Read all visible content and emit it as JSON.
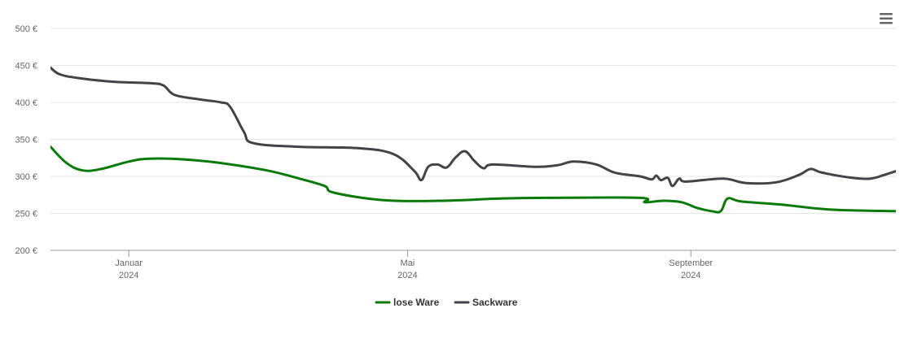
{
  "chart_data": {
    "type": "line",
    "y_axis": {
      "ticks": [
        200,
        250,
        300,
        350,
        400,
        450,
        500
      ],
      "tick_labels": [
        "200 €",
        "250 €",
        "300 €",
        "350 €",
        "400 €",
        "450 €",
        "500 €"
      ],
      "ylim": [
        200,
        500
      ],
      "grid": true
    },
    "x_axis": {
      "xlim": [
        "2023-11-28",
        "2024-11-29"
      ],
      "ticks": [
        {
          "date": "2024-01-01",
          "month": "Januar",
          "year": "2024"
        },
        {
          "date": "2024-05-01",
          "month": "Mai",
          "year": "2024"
        },
        {
          "date": "2024-09-01",
          "month": "September",
          "year": "2024"
        }
      ]
    },
    "legend": {
      "placement": "bottom-center"
    },
    "series": [
      {
        "name": "lose Ware",
        "color": "#0a7a0a",
        "points": [
          [
            "2023-11-28",
            340
          ],
          [
            "2023-12-05",
            318
          ],
          [
            "2023-12-12",
            308
          ],
          [
            "2023-12-20",
            310
          ],
          [
            "2024-01-01",
            320
          ],
          [
            "2024-01-10",
            324
          ],
          [
            "2024-01-25",
            323
          ],
          [
            "2024-02-10",
            318
          ],
          [
            "2024-03-01",
            308
          ],
          [
            "2024-03-15",
            297
          ],
          [
            "2024-03-26",
            287
          ],
          [
            "2024-03-30",
            278
          ],
          [
            "2024-04-20",
            268
          ],
          [
            "2024-05-15",
            267
          ],
          [
            "2024-06-10",
            270
          ],
          [
            "2024-07-01",
            271
          ],
          [
            "2024-08-10",
            271
          ],
          [
            "2024-08-12",
            265
          ],
          [
            "2024-08-20",
            267
          ],
          [
            "2024-08-28",
            265
          ],
          [
            "2024-09-04",
            257
          ],
          [
            "2024-09-10",
            253
          ],
          [
            "2024-09-14",
            253
          ],
          [
            "2024-09-17",
            270
          ],
          [
            "2024-09-23",
            266
          ],
          [
            "2024-10-10",
            262
          ],
          [
            "2024-11-01",
            255
          ],
          [
            "2024-11-29",
            253
          ]
        ]
      },
      {
        "name": "Sackware",
        "color": "#434348",
        "points": [
          [
            "2023-11-28",
            447
          ],
          [
            "2023-12-02",
            438
          ],
          [
            "2023-12-10",
            433
          ],
          [
            "2023-12-25",
            428
          ],
          [
            "2024-01-10",
            426
          ],
          [
            "2024-01-16",
            423
          ],
          [
            "2024-01-21",
            410
          ],
          [
            "2024-02-01",
            404
          ],
          [
            "2024-02-10",
            400
          ],
          [
            "2024-02-14",
            394
          ],
          [
            "2024-02-20",
            360
          ],
          [
            "2024-02-24",
            345
          ],
          [
            "2024-03-15",
            340
          ],
          [
            "2024-04-10",
            338
          ],
          [
            "2024-04-25",
            330
          ],
          [
            "2024-05-04",
            307
          ],
          [
            "2024-05-07",
            295
          ],
          [
            "2024-05-10",
            313
          ],
          [
            "2024-05-14",
            316
          ],
          [
            "2024-05-18",
            312
          ],
          [
            "2024-05-22",
            326
          ],
          [
            "2024-05-26",
            334
          ],
          [
            "2024-05-30",
            321
          ],
          [
            "2024-06-03",
            311
          ],
          [
            "2024-06-07",
            316
          ],
          [
            "2024-06-25",
            313
          ],
          [
            "2024-07-05",
            315
          ],
          [
            "2024-07-12",
            320
          ],
          [
            "2024-07-22",
            316
          ],
          [
            "2024-07-30",
            305
          ],
          [
            "2024-08-10",
            300
          ],
          [
            "2024-08-15",
            296
          ],
          [
            "2024-08-17",
            301
          ],
          [
            "2024-08-19",
            295
          ],
          [
            "2024-08-22",
            298
          ],
          [
            "2024-08-24",
            287
          ],
          [
            "2024-08-27",
            297
          ],
          [
            "2024-08-30",
            293
          ],
          [
            "2024-09-15",
            297
          ],
          [
            "2024-09-25",
            291
          ],
          [
            "2024-10-08",
            292
          ],
          [
            "2024-10-18",
            302
          ],
          [
            "2024-10-23",
            310
          ],
          [
            "2024-10-28",
            305
          ],
          [
            "2024-11-10",
            298
          ],
          [
            "2024-11-18",
            297
          ],
          [
            "2024-11-24",
            302
          ],
          [
            "2024-11-29",
            307
          ]
        ]
      }
    ]
  },
  "icons": {
    "menu": "hamburger-menu-icon"
  }
}
